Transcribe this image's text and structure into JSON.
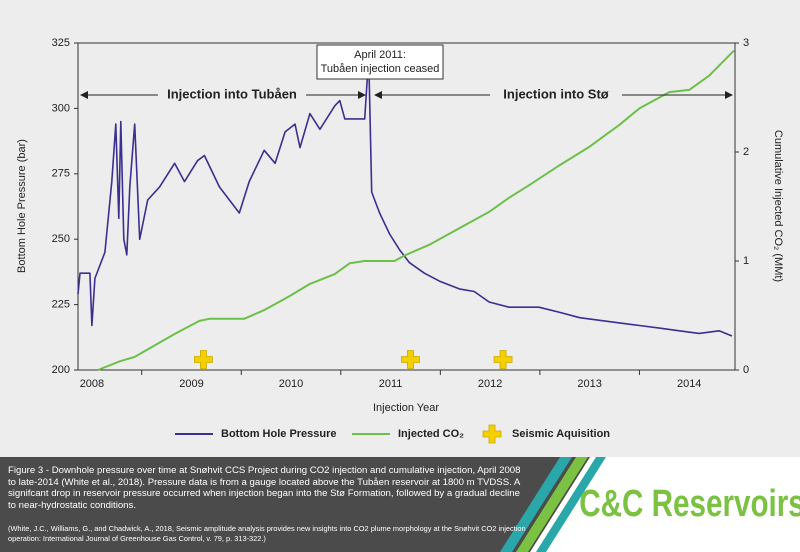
{
  "chart_data": {
    "type": "line",
    "xlabel": "Injection Year",
    "ylabel": "Bottom Hole Pressure (bar)",
    "y2label": "Cumulative Injected CO₂ (MMt)",
    "xlim": [
      2008.36,
      2014.96
    ],
    "xticks": [
      {
        "value": 2008.5,
        "label": "2008"
      },
      {
        "value": 2009.5,
        "label": "2009"
      },
      {
        "value": 2010.5,
        "label": "2010"
      },
      {
        "value": 2011.5,
        "label": "2011"
      },
      {
        "value": 2012.5,
        "label": "2012"
      },
      {
        "value": 2013.5,
        "label": "2013"
      },
      {
        "value": 2014.5,
        "label": "2014"
      }
    ],
    "year_boundaries": [
      2009,
      2010,
      2011,
      2012,
      2013,
      2014
    ],
    "ylim": [
      200,
      325
    ],
    "yticks": [
      200,
      225,
      250,
      275,
      300,
      325
    ],
    "y2lim": [
      0,
      3
    ],
    "y2ticks": [
      0,
      1,
      2,
      3
    ],
    "annotations": [
      "April 2011:",
      "Tubåen injection ceased",
      "Injection into Tubåen",
      "Injection into Stø"
    ],
    "series": [
      {
        "name": "Bottom Hole Pressure",
        "color": "#3b2f8f",
        "x": [
          2008.36,
          2008.38,
          2008.48,
          2008.5,
          2008.53,
          2008.63,
          2008.7,
          2008.74,
          2008.77,
          2008.79,
          2008.82,
          2008.85,
          2008.88,
          2008.93,
          2008.98,
          2009.06,
          2009.18,
          2009.33,
          2009.43,
          2009.56,
          2009.63,
          2009.78,
          2009.98,
          2010.08,
          2010.23,
          2010.34,
          2010.44,
          2010.54,
          2010.59,
          2010.69,
          2010.79,
          2010.94,
          2010.99,
          2011.04,
          2011.24,
          2011.28,
          2011.31,
          2011.39,
          2011.49,
          2011.59,
          2011.69,
          2011.84,
          2011.99,
          2012.19,
          2012.34,
          2012.49,
          2012.69,
          2012.99,
          2013.2,
          2013.4,
          2013.6,
          2013.8,
          2014.0,
          2014.2,
          2014.4,
          2014.6,
          2014.8,
          2014.93
        ],
        "values": [
          229,
          237,
          237,
          217,
          235,
          245,
          272,
          294,
          258,
          295,
          250,
          244,
          270,
          294,
          250,
          265,
          270,
          279,
          272,
          280,
          282,
          270,
          260,
          272,
          284,
          279,
          291,
          294,
          285,
          298,
          292,
          301,
          303,
          296,
          296,
          320,
          268,
          260,
          252,
          246,
          241,
          237,
          234,
          231,
          230,
          226,
          224,
          224,
          222,
          220,
          219,
          218,
          217,
          216,
          215,
          214,
          215,
          213
        ]
      },
      {
        "name": "Injected CO₂",
        "color": "#6cc04a",
        "axis": "y2",
        "x": [
          2008.56,
          2008.78,
          2008.93,
          2009.08,
          2009.33,
          2009.58,
          2009.68,
          2010.03,
          2010.23,
          2010.49,
          2010.69,
          2010.94,
          2011.09,
          2011.24,
          2011.54,
          2011.64,
          2011.89,
          2012.19,
          2012.49,
          2012.69,
          2012.9,
          2013.2,
          2013.5,
          2013.8,
          2014.0,
          2014.3,
          2014.5,
          2014.7,
          2014.95
        ],
        "values": [
          0,
          0.08,
          0.12,
          0.2,
          0.33,
          0.45,
          0.47,
          0.47,
          0.55,
          0.68,
          0.79,
          0.88,
          0.98,
          1.0,
          1.0,
          1.05,
          1.15,
          1.3,
          1.45,
          1.58,
          1.7,
          1.88,
          2.05,
          2.25,
          2.4,
          2.55,
          2.57,
          2.7,
          2.93
        ]
      },
      {
        "name": "Seismic Aquisition",
        "color": "#f5d000",
        "marker": "plus",
        "x": [
          2009.62,
          2011.7,
          2012.63
        ],
        "values": [
          204,
          204,
          204
        ]
      }
    ]
  },
  "caption": {
    "figure": "Figure 3 - Downhole pressure over time at Snøhvit CCS Project during CO2 injection and cumulative injection, April 2008 to late-2014 (White et al., 2018). Pressure data is from a gauge located above the Tubåen reservoir at 1800 m TVDSS. A signifcant drop in reservoir pressure occurred when injection began into the Stø Formation, followed by a gradual decline to near-hydrostatic conditions.",
    "citation": "(White, J.C., Williams, G., and Chadwick, A., 2018, Seismic amplitude analysis provides new insights into CO2 plume morphology at the Snøhvit CO2 injection operation: International Journal of Greenhouse Gas Control, v. 79, p. 313-322.)"
  },
  "logo": "C&C Reservoirs"
}
